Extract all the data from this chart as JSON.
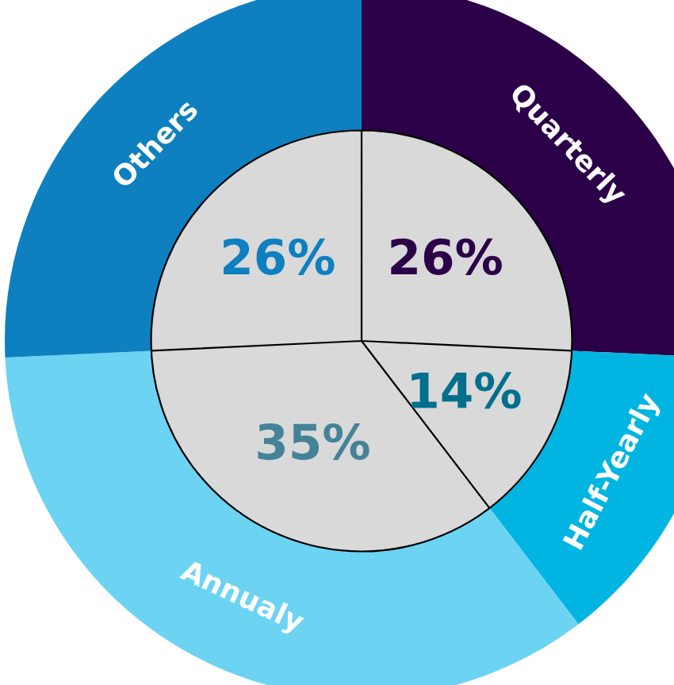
{
  "chart_data": {
    "type": "donut",
    "categories": [
      "Quarterly",
      "Half-Yearly",
      "Annualy",
      "Others"
    ],
    "values": [
      26,
      14,
      35,
      26
    ],
    "value_labels": [
      "26%",
      "14%",
      "35%",
      "26%"
    ],
    "colors": [
      "#2b0048",
      "#00b5e2",
      "#6dd3f3",
      "#0e80bf"
    ]
  }
}
